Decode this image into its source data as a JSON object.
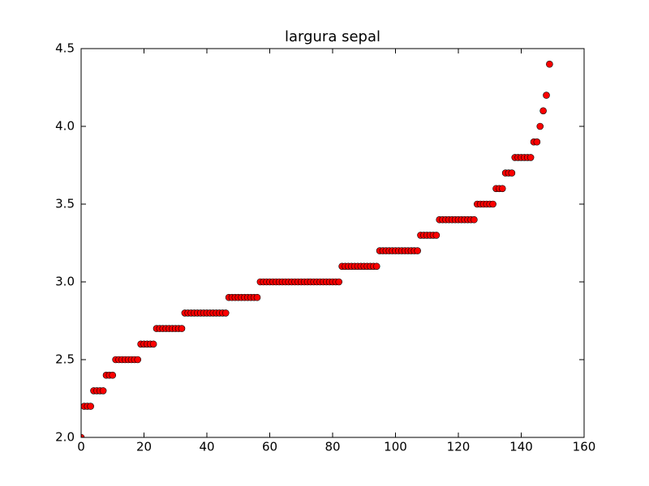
{
  "chart_data": {
    "type": "scatter",
    "title": "largura sepal",
    "x": [
      0,
      1,
      2,
      3,
      4,
      5,
      6,
      7,
      8,
      9,
      10,
      11,
      12,
      13,
      14,
      15,
      16,
      17,
      18,
      19,
      20,
      21,
      22,
      23,
      24,
      25,
      26,
      27,
      28,
      29,
      30,
      31,
      32,
      33,
      34,
      35,
      36,
      37,
      38,
      39,
      40,
      41,
      42,
      43,
      44,
      45,
      46,
      47,
      48,
      49,
      50,
      51,
      52,
      53,
      54,
      55,
      56,
      57,
      58,
      59,
      60,
      61,
      62,
      63,
      64,
      65,
      66,
      67,
      68,
      69,
      70,
      71,
      72,
      73,
      74,
      75,
      76,
      77,
      78,
      79,
      80,
      81,
      82,
      83,
      84,
      85,
      86,
      87,
      88,
      89,
      90,
      91,
      92,
      93,
      94,
      95,
      96,
      97,
      98,
      99,
      100,
      101,
      102,
      103,
      104,
      105,
      106,
      107,
      108,
      109,
      110,
      111,
      112,
      113,
      114,
      115,
      116,
      117,
      118,
      119,
      120,
      121,
      122,
      123,
      124,
      125,
      126,
      127,
      128,
      129,
      130,
      131,
      132,
      133,
      134,
      135,
      136,
      137,
      138,
      139,
      140,
      141,
      142,
      143,
      144,
      145,
      146,
      147,
      148,
      149
    ],
    "values": [
      2.0,
      2.2,
      2.2,
      2.2,
      2.3,
      2.3,
      2.3,
      2.3,
      2.4,
      2.4,
      2.4,
      2.5,
      2.5,
      2.5,
      2.5,
      2.5,
      2.5,
      2.5,
      2.5,
      2.6,
      2.6,
      2.6,
      2.6,
      2.6,
      2.7,
      2.7,
      2.7,
      2.7,
      2.7,
      2.7,
      2.7,
      2.7,
      2.7,
      2.8,
      2.8,
      2.8,
      2.8,
      2.8,
      2.8,
      2.8,
      2.8,
      2.8,
      2.8,
      2.8,
      2.8,
      2.8,
      2.8,
      2.9,
      2.9,
      2.9,
      2.9,
      2.9,
      2.9,
      2.9,
      2.9,
      2.9,
      2.9,
      3.0,
      3.0,
      3.0,
      3.0,
      3.0,
      3.0,
      3.0,
      3.0,
      3.0,
      3.0,
      3.0,
      3.0,
      3.0,
      3.0,
      3.0,
      3.0,
      3.0,
      3.0,
      3.0,
      3.0,
      3.0,
      3.0,
      3.0,
      3.0,
      3.0,
      3.0,
      3.1,
      3.1,
      3.1,
      3.1,
      3.1,
      3.1,
      3.1,
      3.1,
      3.1,
      3.1,
      3.1,
      3.1,
      3.2,
      3.2,
      3.2,
      3.2,
      3.2,
      3.2,
      3.2,
      3.2,
      3.2,
      3.2,
      3.2,
      3.2,
      3.2,
      3.3,
      3.3,
      3.3,
      3.3,
      3.3,
      3.3,
      3.4,
      3.4,
      3.4,
      3.4,
      3.4,
      3.4,
      3.4,
      3.4,
      3.4,
      3.4,
      3.4,
      3.4,
      3.5,
      3.5,
      3.5,
      3.5,
      3.5,
      3.5,
      3.6,
      3.6,
      3.6,
      3.7,
      3.7,
      3.7,
      3.8,
      3.8,
      3.8,
      3.8,
      3.8,
      3.8,
      3.9,
      3.9,
      4.0,
      4.1,
      4.2,
      4.4
    ],
    "color": "#ff0000",
    "xlim": [
      0,
      160
    ],
    "xticks": [
      0,
      20,
      40,
      60,
      80,
      100,
      120,
      140,
      160
    ],
    "ylim": [
      2.0,
      4.5
    ],
    "yticks": [
      {
        "value": 2.0,
        "label": "2.0"
      },
      2.5,
      {
        "value": 3.0,
        "label": "3.0"
      },
      3.5,
      {
        "value": 4.0,
        "label": "4.0"
      },
      4.5
    ]
  }
}
